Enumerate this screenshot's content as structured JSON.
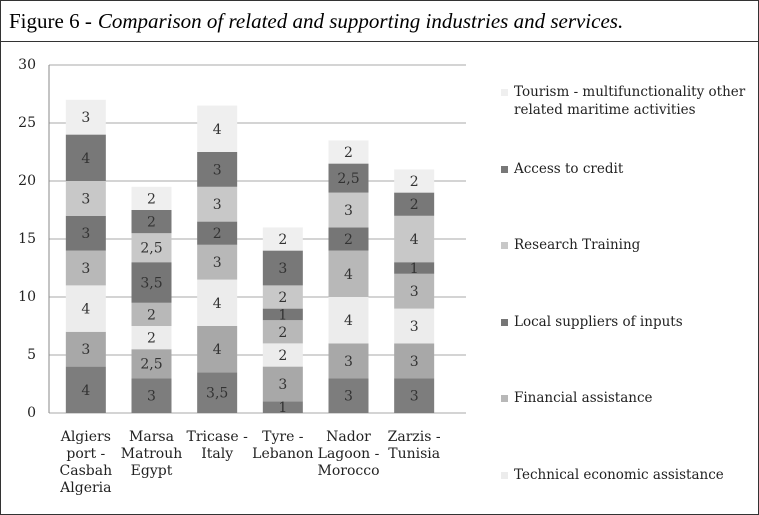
{
  "figure_label": "Figure 6 -",
  "chart_data": {
    "type": "stacked_bar",
    "title": "Comparison of related and supporting industries and services.",
    "categories": [
      "Algiers\nport -\nCasbah\nAlgeria",
      "Marsa\nMatrouh\nEgypt",
      "Tricase -\nItaly",
      "Tyre -\nLebanon",
      "Nador\nLagoon -\nMorocco",
      "Zarzis -\nTunisia"
    ],
    "ylim": [
      0,
      30
    ],
    "yticks": [
      0,
      5,
      10,
      15,
      20,
      25,
      30
    ],
    "grid": true,
    "legend": "right",
    "series": [
      {
        "color": "#7d7d7d",
        "values": [
          4,
          3,
          3.5,
          1,
          3,
          3
        ],
        "value_labels": [
          "4",
          "3",
          "3,5",
          "1",
          "3",
          "3"
        ]
      },
      {
        "color": "#a8a8a8",
        "values": [
          3,
          2.5,
          4,
          3,
          3,
          3
        ],
        "value_labels": [
          "3",
          "2,5",
          "4",
          "3",
          "3",
          "3"
        ]
      },
      {
        "name": "Technical economic assistance",
        "color": "#ececec",
        "values": [
          4,
          2,
          4,
          2,
          4,
          3
        ],
        "value_labels": [
          "4",
          "2",
          "4",
          "2",
          "4",
          "3"
        ]
      },
      {
        "name": "Financial assistance",
        "color": "#b8b8b8",
        "values": [
          3,
          2,
          3,
          2,
          4,
          3
        ],
        "value_labels": [
          "3",
          "2",
          "3",
          "2",
          "4",
          "3"
        ]
      },
      {
        "name": "Local suppliers of inputs",
        "color": "#767676",
        "values": [
          3,
          3.5,
          2,
          1,
          2,
          1
        ],
        "value_labels": [
          "3",
          "3,5",
          "2",
          "1",
          "2",
          "1"
        ]
      },
      {
        "name": "Research Training",
        "color": "#c8c8c8",
        "values": [
          3,
          2.5,
          3,
          2,
          3,
          4
        ],
        "value_labels": [
          "3",
          "2,5",
          "3",
          "2",
          "3",
          "4"
        ]
      },
      {
        "name": "Access to credit",
        "color": "#787878",
        "values": [
          4,
          2,
          3,
          3,
          2.5,
          2
        ],
        "value_labels": [
          "4",
          "2",
          "3",
          "3",
          "2,5",
          "2"
        ]
      },
      {
        "name": "Tourism - multifunctionality other related maritime activities",
        "color": "#efefef",
        "values": [
          3,
          2,
          4,
          2,
          2,
          2
        ],
        "value_labels": [
          "3",
          "2",
          "4",
          "2",
          "2",
          "2"
        ]
      }
    ]
  }
}
